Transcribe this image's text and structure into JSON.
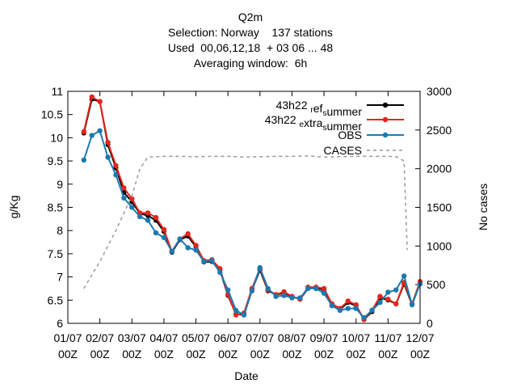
{
  "chart_data": {
    "type": "line",
    "title_lines": [
      "Q2m",
      "Selection: Norway    137 stations",
      "Used  00,06,12,18  + 03 06 ... 48",
      "Averaging window:  6h"
    ],
    "xlabel": "Date",
    "ylabel": "g/Kg",
    "y2label": "No cases",
    "ylim": [
      6,
      11
    ],
    "y2lim": [
      0,
      3000
    ],
    "y_ticks": [
      "6",
      "6.5",
      "7",
      "7.5",
      "8",
      "8.5",
      "9",
      "9.5",
      "10",
      "10.5",
      "11"
    ],
    "y2_ticks": [
      "0",
      "500",
      "1000",
      "1500",
      "2000",
      "2500",
      "3000"
    ],
    "x_ticks": [
      {
        "line1": "01/07",
        "line2": "00Z"
      },
      {
        "line1": "02/07",
        "line2": "00Z"
      },
      {
        "line1": "03/07",
        "line2": "00Z"
      },
      {
        "line1": "04/07",
        "line2": "00Z"
      },
      {
        "line1": "05/07",
        "line2": "00Z"
      },
      {
        "line1": "06/07",
        "line2": "00Z"
      },
      {
        "line1": "07/07",
        "line2": "00Z"
      },
      {
        "line1": "08/07",
        "line2": "00Z"
      },
      {
        "line1": "09/07",
        "line2": "00Z"
      },
      {
        "line1": "10/07",
        "line2": "00Z"
      },
      {
        "line1": "11/07",
        "line2": "00Z"
      },
      {
        "line1": "12/07",
        "line2": "00Z"
      }
    ],
    "x_day_range": [
      0,
      11
    ],
    "legend_position": "top-right",
    "x_days": [
      0.5,
      0.75,
      1.0,
      1.25,
      1.5,
      1.75,
      2.0,
      2.25,
      2.5,
      2.75,
      3.0,
      3.25,
      3.5,
      3.75,
      4.0,
      4.25,
      4.5,
      4.75,
      5.0,
      5.25,
      5.5,
      5.75,
      6.0,
      6.25,
      6.5,
      6.75,
      7.0,
      7.25,
      7.5,
      7.75,
      8.0,
      8.25,
      8.5,
      8.75,
      9.0,
      9.25,
      9.5,
      9.75,
      10.0,
      10.25,
      10.5,
      10.75,
      11.0
    ],
    "series": [
      {
        "name": "43h22 ref summer",
        "color": "#000000",
        "marker": "plus",
        "values": [
          10.1,
          10.83,
          10.78,
          9.85,
          9.35,
          8.82,
          8.62,
          8.37,
          8.32,
          8.22,
          7.98,
          7.53,
          7.8,
          7.88,
          7.65,
          7.32,
          7.33,
          7.15,
          6.6,
          6.2,
          6.18,
          6.72,
          7.15,
          6.7,
          6.62,
          6.65,
          6.58,
          6.52,
          6.75,
          6.77,
          6.72,
          6.42,
          6.3,
          6.45,
          6.38,
          6.08,
          6.25,
          6.55,
          6.5,
          6.42,
          6.85,
          6.4,
          6.88
        ]
      },
      {
        "name": "43h22 extra summer",
        "color": "#e3261b",
        "marker": "circle",
        "values": [
          10.13,
          10.88,
          10.78,
          9.9,
          9.4,
          8.92,
          8.68,
          8.38,
          8.38,
          8.28,
          8.02,
          7.55,
          7.82,
          7.93,
          7.68,
          7.35,
          7.37,
          7.18,
          6.62,
          6.18,
          6.22,
          6.75,
          7.18,
          6.72,
          6.62,
          6.68,
          6.58,
          6.52,
          6.78,
          6.78,
          6.75,
          6.42,
          6.32,
          6.48,
          6.4,
          6.08,
          6.28,
          6.58,
          6.52,
          6.42,
          6.88,
          6.42,
          6.9
        ]
      },
      {
        "name": "OBS",
        "color": "#1a7ab0",
        "marker": "circle",
        "values": [
          9.52,
          10.05,
          10.15,
          9.58,
          9.2,
          8.7,
          8.5,
          8.3,
          8.22,
          7.95,
          7.85,
          7.55,
          7.82,
          7.63,
          7.58,
          7.33,
          7.35,
          7.1,
          6.72,
          6.28,
          6.18,
          6.7,
          7.2,
          6.75,
          6.58,
          6.6,
          6.55,
          6.55,
          6.75,
          6.75,
          6.65,
          6.38,
          6.28,
          6.32,
          6.32,
          6.12,
          6.28,
          6.45,
          6.67,
          6.72,
          7.02,
          6.4,
          6.85
        ]
      },
      {
        "name": "CASES",
        "color": "#999999",
        "dashed": true,
        "x_days": [
          0.5,
          1.0,
          1.5,
          2.0,
          2.25,
          2.5,
          3.0,
          3.5,
          4.0,
          4.5,
          5.0,
          5.5,
          6.0,
          6.5,
          7.0,
          7.5,
          8.0,
          8.5,
          9.0,
          9.5,
          10.0,
          10.25,
          10.5,
          10.6
        ],
        "values": [
          450,
          800,
          1200,
          1650,
          2000,
          2150,
          2160,
          2160,
          2155,
          2160,
          2160,
          2150,
          2155,
          2160,
          2160,
          2165,
          2150,
          2155,
          2160,
          2160,
          2160,
          2155,
          2100,
          950
        ]
      }
    ],
    "legend": [
      {
        "main1": "43h22 ",
        "sub1": "r",
        "main2": "ef",
        "sub2": "s",
        "main3": "ummer"
      },
      {
        "main1": "43h22 ",
        "sub1": "e",
        "main2": "xtra",
        "sub2": "s",
        "main3": "ummer"
      },
      {
        "main1": "OBS",
        "sub1": "",
        "main2": "",
        "sub2": "",
        "main3": ""
      },
      {
        "main1": "CASES",
        "sub1": "",
        "main2": "",
        "sub2": "",
        "main3": ""
      }
    ]
  }
}
